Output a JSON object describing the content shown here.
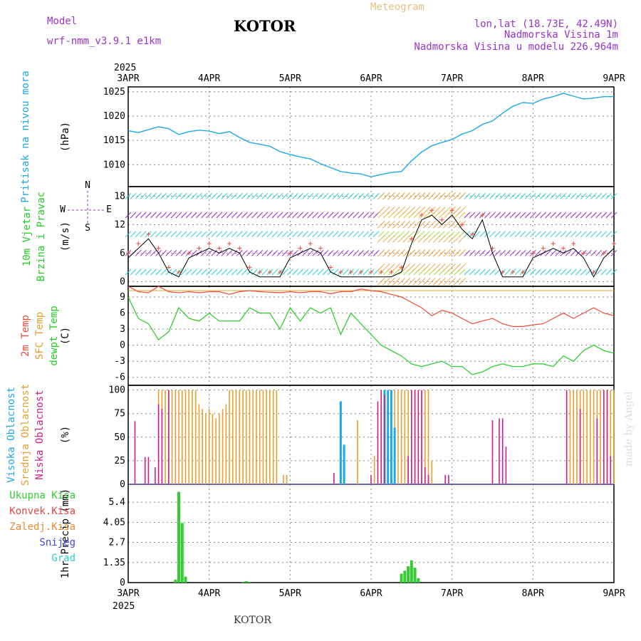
{
  "header": {
    "model_label": "Model",
    "model_name": "wrf-nmm_v3.9.1 e1km",
    "station": "KOTOR",
    "meteogram": "Meteogram",
    "lonlat": "lon,lat (18.73E, 42.49N)",
    "elevation": "Nadmorska Visina 1m",
    "model_elevation": "Nadmorska Visina u modelu 226.964m",
    "year_top": "2025",
    "year_bottom": "2025",
    "footer_station": "KOTOR",
    "watermark": "made by Angel"
  },
  "colors": {
    "pressure": "#1fa8e8",
    "temp2m": "#f04a3a",
    "sfc_temp": "#e8a030",
    "dewpoint": "#22cc22",
    "high_cloud": "#1fa8e8",
    "mid_cloud": "#e8a030",
    "low_cloud": "#cc1f8a",
    "precip": "#33cc33",
    "wind_violet": "#9922cc",
    "wind_cyan": "#22cccc"
  },
  "chart_data": [
    {
      "type": "line",
      "id": "pressure",
      "title_lines": [
        "Pritisak na nivou mora"
      ],
      "ylabel": "(hPa)",
      "x_ticks": [
        "3APR",
        "4APR",
        "5APR",
        "6APR",
        "7APR",
        "8APR",
        "9APR"
      ],
      "x_range": [
        0,
        144
      ],
      "ylim": [
        1005.5,
        1026
      ],
      "y_ticks": [
        "1010",
        "1015",
        "1020",
        "1025"
      ],
      "series": [
        {
          "color_key": "pressure",
          "x": [
            0,
            3,
            6,
            9,
            12,
            15,
            18,
            21,
            24,
            27,
            30,
            33,
            36,
            39,
            42,
            45,
            48,
            51,
            54,
            57,
            60,
            63,
            66,
            69,
            72,
            75,
            78,
            81,
            84,
            87,
            90,
            93,
            96,
            99,
            102,
            105,
            108,
            111,
            114,
            117,
            120,
            123,
            126,
            129,
            132,
            135,
            138,
            141,
            144
          ],
          "y": [
            1017,
            1016.6,
            1017.2,
            1017.8,
            1017.4,
            1016.2,
            1016.8,
            1017.1,
            1016.9,
            1016.4,
            1016.8,
            1015.6,
            1014.6,
            1014.2,
            1013.8,
            1012.7,
            1012.1,
            1011.6,
            1011.2,
            1010.2,
            1009.4,
            1008.6,
            1008.3,
            1008.1,
            1007.5,
            1008.0,
            1008.4,
            1008.6,
            1010.8,
            1012.6,
            1013.9,
            1014.6,
            1015.2,
            1016.3,
            1017.0,
            1018.3,
            1019.0,
            1020.6,
            1022.0,
            1022.8,
            1022.6,
            1023.5,
            1024.0,
            1024.7,
            1024.1,
            1023.5,
            1023.7,
            1024.0,
            1024.0
          ]
        }
      ]
    },
    {
      "type": "line",
      "id": "wind",
      "title_lines": [
        "10m Vjetar",
        "Brzina i Pravac"
      ],
      "ylabel": "(m/s)",
      "compass": {
        "n": "N",
        "s": "S",
        "e": "E",
        "w": "W"
      },
      "x_range": [
        0,
        144
      ],
      "ylim": [
        -1,
        20
      ],
      "y_ticks": [
        "0",
        "6",
        "12",
        "18"
      ],
      "series": [
        {
          "name_hidden": true,
          "color_key": "black",
          "x": [
            0,
            3,
            6,
            9,
            12,
            15,
            18,
            21,
            24,
            27,
            30,
            33,
            36,
            39,
            42,
            45,
            48,
            51,
            54,
            57,
            60,
            63,
            66,
            69,
            72,
            75,
            78,
            81,
            84,
            87,
            90,
            93,
            96,
            99,
            102,
            105,
            108,
            111,
            114,
            117,
            120,
            123,
            126,
            129,
            132,
            135,
            138,
            141,
            144
          ],
          "y": [
            5,
            7,
            9,
            6,
            2,
            1,
            5,
            6,
            7,
            6,
            7,
            6,
            2,
            1,
            1,
            1,
            5,
            6,
            7,
            6,
            2,
            1,
            1,
            1,
            1,
            1,
            1,
            2,
            8,
            13,
            14,
            12,
            14,
            11,
            9,
            13,
            6,
            1,
            1,
            1,
            5,
            6,
            7,
            6,
            7,
            5,
            1,
            5,
            7
          ]
        }
      ]
    },
    {
      "type": "line",
      "id": "temperature",
      "title_lines": [
        "2m Temp",
        "SFC Temp",
        "dewpt Temp"
      ],
      "ylabel": "(C)",
      "x_range": [
        0,
        144
      ],
      "ylim": [
        -7.5,
        11
      ],
      "y_ticks": [
        "-6",
        "-3",
        "0",
        "3",
        "6",
        "9"
      ],
      "series": [
        {
          "color_key": "temp2m",
          "x": [
            0,
            3,
            6,
            9,
            12,
            15,
            18,
            21,
            24,
            27,
            30,
            33,
            36,
            39,
            42,
            45,
            48,
            51,
            54,
            57,
            60,
            63,
            66,
            69,
            72,
            75,
            78,
            81,
            84,
            87,
            90,
            93,
            96,
            99,
            102,
            105,
            108,
            111,
            114,
            117,
            120,
            123,
            126,
            129,
            132,
            135,
            138,
            141,
            144
          ],
          "y": [
            11,
            10,
            9.8,
            11,
            10,
            9.8,
            10,
            9.8,
            10,
            10,
            9.5,
            10,
            10.2,
            10,
            9.9,
            9.8,
            10,
            9.8,
            10,
            10,
            9.6,
            10,
            10,
            10.5,
            10.2,
            10,
            9.5,
            9,
            8,
            7,
            5.5,
            6.5,
            6,
            5,
            4,
            4.5,
            5,
            4,
            3.5,
            3.5,
            3.8,
            4,
            5,
            6,
            5,
            6,
            7,
            6,
            5.5
          ]
        },
        {
          "color_key": "sfc_temp",
          "x": [
            0,
            144
          ],
          "y": [
            10.2,
            10.2
          ]
        },
        {
          "color_key": "dewpoint",
          "x": [
            0,
            3,
            6,
            9,
            12,
            15,
            18,
            21,
            24,
            27,
            30,
            33,
            36,
            39,
            42,
            45,
            48,
            51,
            54,
            57,
            60,
            63,
            66,
            69,
            72,
            75,
            78,
            81,
            84,
            87,
            90,
            93,
            96,
            99,
            102,
            105,
            108,
            111,
            114,
            117,
            120,
            123,
            126,
            129,
            132,
            135,
            138,
            141,
            144
          ],
          "y": [
            9,
            5,
            4,
            1,
            2.5,
            7,
            5,
            4.5,
            6,
            4.5,
            4.5,
            4.5,
            7,
            6,
            6,
            3,
            7,
            4.5,
            7,
            6,
            7,
            2,
            6,
            4,
            2,
            0,
            -1,
            -2,
            -3.5,
            -4,
            -3.5,
            -3,
            -4,
            -4,
            -5.5,
            -5,
            -4,
            -3.5,
            -4,
            -4,
            -3.5,
            -3.5,
            -4,
            -2,
            -3,
            -1,
            0,
            -1,
            -1.5
          ]
        }
      ]
    },
    {
      "type": "bar",
      "id": "clouds",
      "title_lines": [
        "Visoka Oblacnost",
        "Srednja Oblacnost",
        "Niska Oblacnost"
      ],
      "ylabel": "(%)",
      "x_range": [
        0,
        144
      ],
      "ylim": [
        0,
        105
      ],
      "y_ticks": [
        "0",
        "25",
        "50",
        "75",
        "100"
      ],
      "series": [
        {
          "color_key": "mid_cloud",
          "x": [
            9,
            10,
            11,
            12,
            13,
            14,
            15,
            16,
            17,
            18,
            19,
            20,
            21,
            22,
            23,
            24,
            25,
            26,
            27,
            28,
            29,
            30,
            31,
            32,
            33,
            34,
            35,
            36,
            37,
            38,
            39,
            40,
            41,
            42,
            43,
            44,
            45,
            46,
            47,
            48,
            49,
            50,
            51,
            52,
            53,
            54,
            55,
            56,
            57,
            58,
            59,
            60,
            61,
            62,
            63,
            64,
            65,
            66,
            67,
            68,
            69,
            70,
            71,
            72,
            73,
            74,
            75,
            76,
            77,
            78,
            79,
            80,
            81,
            82,
            83,
            84,
            85,
            86,
            87,
            88,
            89,
            90,
            130,
            131,
            132,
            133,
            134,
            135,
            136,
            137,
            138,
            139,
            140,
            141,
            142,
            143,
            144
          ],
          "y": [
            100,
            100,
            100,
            100,
            100,
            100,
            100,
            100,
            100,
            100,
            100,
            100,
            85,
            80,
            75,
            80,
            75,
            70,
            75,
            80,
            85,
            100,
            100,
            100,
            100,
            100,
            100,
            100,
            100,
            100,
            100,
            100,
            100,
            100,
            100,
            100,
            0,
            10,
            10,
            0,
            0,
            0,
            0,
            0,
            0,
            0,
            0,
            0,
            0,
            0,
            0,
            0,
            0,
            0,
            0,
            0,
            0,
            0,
            0,
            68,
            0,
            0,
            0,
            0,
            30,
            0,
            0,
            0,
            85,
            0,
            100,
            100,
            100,
            100,
            100,
            100,
            100,
            100,
            100,
            100,
            100,
            25,
            100,
            100,
            100,
            100,
            100,
            100,
            100,
            100,
            100,
            100,
            100,
            100,
            100,
            100,
            100
          ]
        },
        {
          "color_key": "high_cloud",
          "x": [
            63,
            64,
            76,
            77,
            78,
            79
          ],
          "y": [
            88,
            42,
            100,
            100,
            100,
            60
          ]
        },
        {
          "color_key": "low_cloud",
          "x": [
            2,
            5,
            6,
            8,
            9,
            10,
            12,
            61,
            72,
            74,
            75,
            76,
            83,
            84,
            85,
            86,
            87,
            88,
            89,
            94,
            95,
            108,
            110,
            111,
            112,
            130,
            134,
            139,
            141,
            142,
            143
          ],
          "y": [
            67,
            29,
            29,
            18,
            85,
            80,
            100,
            12,
            10,
            88,
            100,
            95,
            30,
            100,
            100,
            100,
            100,
            18,
            10,
            10,
            10,
            68,
            70,
            70,
            40,
            100,
            80,
            70,
            100,
            100,
            30
          ]
        }
      ]
    },
    {
      "type": "bar",
      "id": "precip",
      "title_lines": [
        "Ukupna Kisa",
        "Konvek.Kisa",
        "Zaledj.Kisa",
        "Snijeg",
        "Grad"
      ],
      "title_colors": [
        "#33cc33",
        "#e84444",
        "#e88a33",
        "#4444ee",
        "#33cccc"
      ],
      "ylabel": "1hr Precip (mm)",
      "x_range": [
        0,
        144
      ],
      "ylim": [
        0,
        6.6
      ],
      "y_ticks": [
        "0",
        "1.35",
        "2.7",
        "4.05",
        "5.4"
      ],
      "series": [
        {
          "color_key": "precip",
          "x": [
            14,
            15,
            16,
            17,
            34,
            35,
            36,
            81,
            82,
            83,
            84,
            85,
            86
          ],
          "y": [
            0.2,
            6.1,
            4.0,
            0.4,
            0.05,
            0.1,
            0.05,
            0.6,
            0.8,
            1.1,
            1.5,
            1.0,
            0.3
          ]
        }
      ]
    }
  ]
}
